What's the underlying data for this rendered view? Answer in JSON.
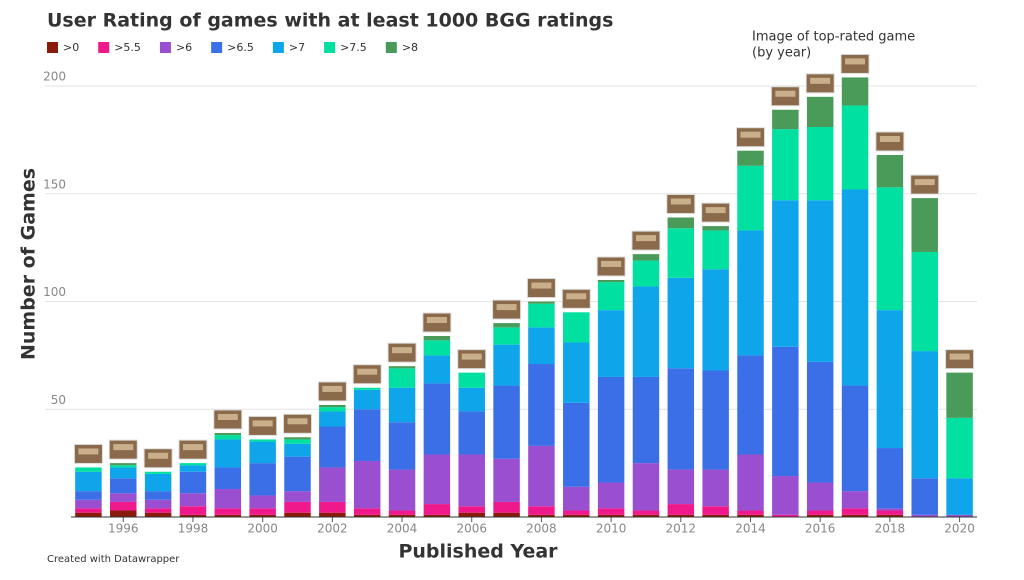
{
  "chart_data": {
    "type": "stacked_bar",
    "title": "User Rating of games with at least 1000 BGG ratings",
    "x_label": "Published Year",
    "y_label": "Number of Games",
    "annotation": [
      "Image of top-rated game",
      "(by year)"
    ],
    "footer": "Created with Datawrapper",
    "categories": [
      null,
      "1996",
      null,
      "1998",
      null,
      "2000",
      null,
      "2002",
      null,
      "2004",
      null,
      "2006",
      null,
      "2008",
      null,
      "2010",
      null,
      "2012",
      null,
      "2014",
      null,
      "2016",
      null,
      "2018",
      null,
      "2020"
    ],
    "ylim": [
      0,
      210
    ],
    "yticks": [
      50,
      100,
      150,
      200
    ],
    "grid": true,
    "series": [
      {
        "name": ">0",
        "color": "#8b1a0a",
        "values": [
          2,
          3,
          2,
          1,
          1,
          1,
          2,
          2,
          1,
          1,
          1,
          2,
          2,
          1,
          1,
          1,
          1,
          1,
          1,
          1,
          0,
          1,
          1,
          1,
          0,
          0
        ]
      },
      {
        "name": ">5.5",
        "color": "#f0198c",
        "values": [
          2,
          4,
          2,
          4,
          3,
          3,
          5,
          5,
          3,
          2,
          5,
          3,
          5,
          4,
          2,
          3,
          2,
          5,
          4,
          2,
          1,
          2,
          3,
          2,
          0,
          0
        ]
      },
      {
        "name": ">6",
        "color": "#9a4fd0",
        "values": [
          4,
          4,
          4,
          6,
          9,
          6,
          5,
          16,
          22,
          19,
          23,
          24,
          20,
          28,
          11,
          12,
          22,
          16,
          17,
          26,
          18,
          13,
          8,
          1,
          1,
          1
        ]
      },
      {
        "name": ">6.5",
        "color": "#3b6fe8",
        "values": [
          4,
          7,
          4,
          10,
          10,
          15,
          16,
          19,
          24,
          22,
          33,
          20,
          34,
          38,
          39,
          49,
          40,
          47,
          46,
          46,
          60,
          56,
          49,
          28,
          17,
          0
        ]
      },
      {
        "name": ">7",
        "color": "#0ea5ea",
        "values": [
          9,
          5,
          8,
          3,
          13,
          10,
          6,
          7,
          9,
          16,
          13,
          11,
          19,
          17,
          28,
          31,
          42,
          42,
          47,
          58,
          68,
          75,
          91,
          64,
          59,
          17
        ]
      },
      {
        "name": ">7.5",
        "color": "#00e0a0",
        "values": [
          2,
          1,
          1,
          1,
          2,
          1,
          2,
          2,
          1,
          9,
          7,
          7,
          8,
          11,
          14,
          13,
          12,
          23,
          18,
          30,
          33,
          34,
          39,
          57,
          46,
          28
        ]
      },
      {
        "name": ">8",
        "color": "#4a9a5a",
        "values": [
          0,
          1,
          0,
          0,
          1,
          0,
          1,
          1,
          0,
          1,
          2,
          0,
          2,
          1,
          0,
          1,
          3,
          5,
          2,
          7,
          9,
          14,
          13,
          15,
          25,
          21
        ]
      }
    ]
  }
}
